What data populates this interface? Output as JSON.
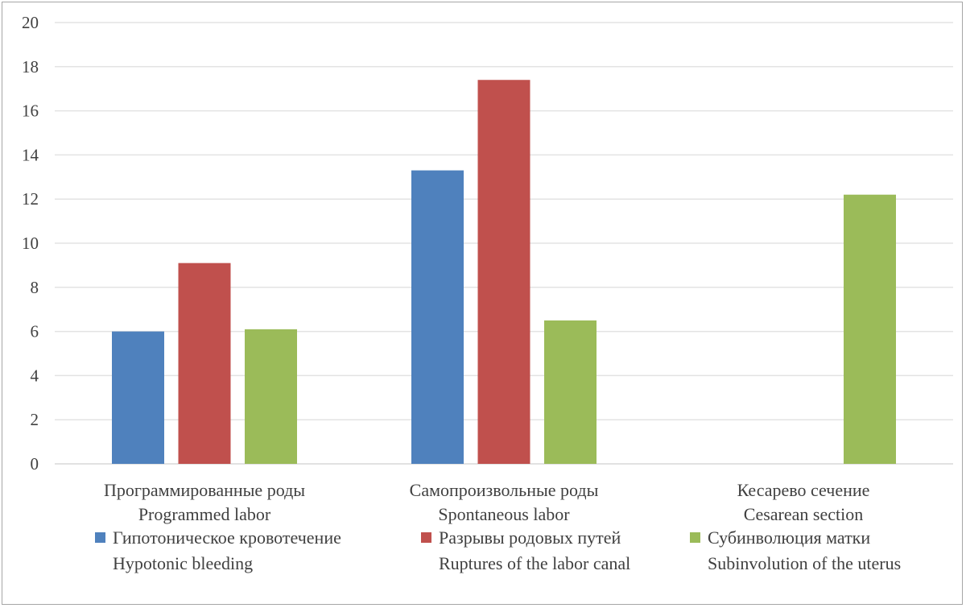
{
  "chart_data": {
    "type": "bar",
    "categories": [
      [
        "Программированные роды",
        "Programmed labor"
      ],
      [
        "Самопроизвольные роды",
        "Spontaneous labor"
      ],
      [
        "Кесарево сечение",
        "Cesarean section"
      ]
    ],
    "series": [
      {
        "name": [
          "Гипотоническое кровотечение",
          "Hypotonic bleeding"
        ],
        "color": "#4f81bd",
        "values": [
          6.0,
          13.3,
          0
        ]
      },
      {
        "name": [
          "Разрывы родовых путей",
          "Ruptures of the labor canal"
        ],
        "color": "#c0504d",
        "values": [
          9.1,
          17.4,
          0
        ]
      },
      {
        "name": [
          "Субинволюция матки",
          "Subinvolution of the uterus"
        ],
        "color": "#9bbb59",
        "values": [
          6.1,
          6.5,
          12.2
        ]
      }
    ],
    "ylim": [
      0,
      20
    ],
    "yticks": [
      "0",
      "2",
      "4",
      "6",
      "8",
      "10",
      "12",
      "14",
      "16",
      "18",
      "20"
    ],
    "grid": true,
    "legend": "bottom",
    "title": "",
    "xlabel": "",
    "ylabel": ""
  }
}
